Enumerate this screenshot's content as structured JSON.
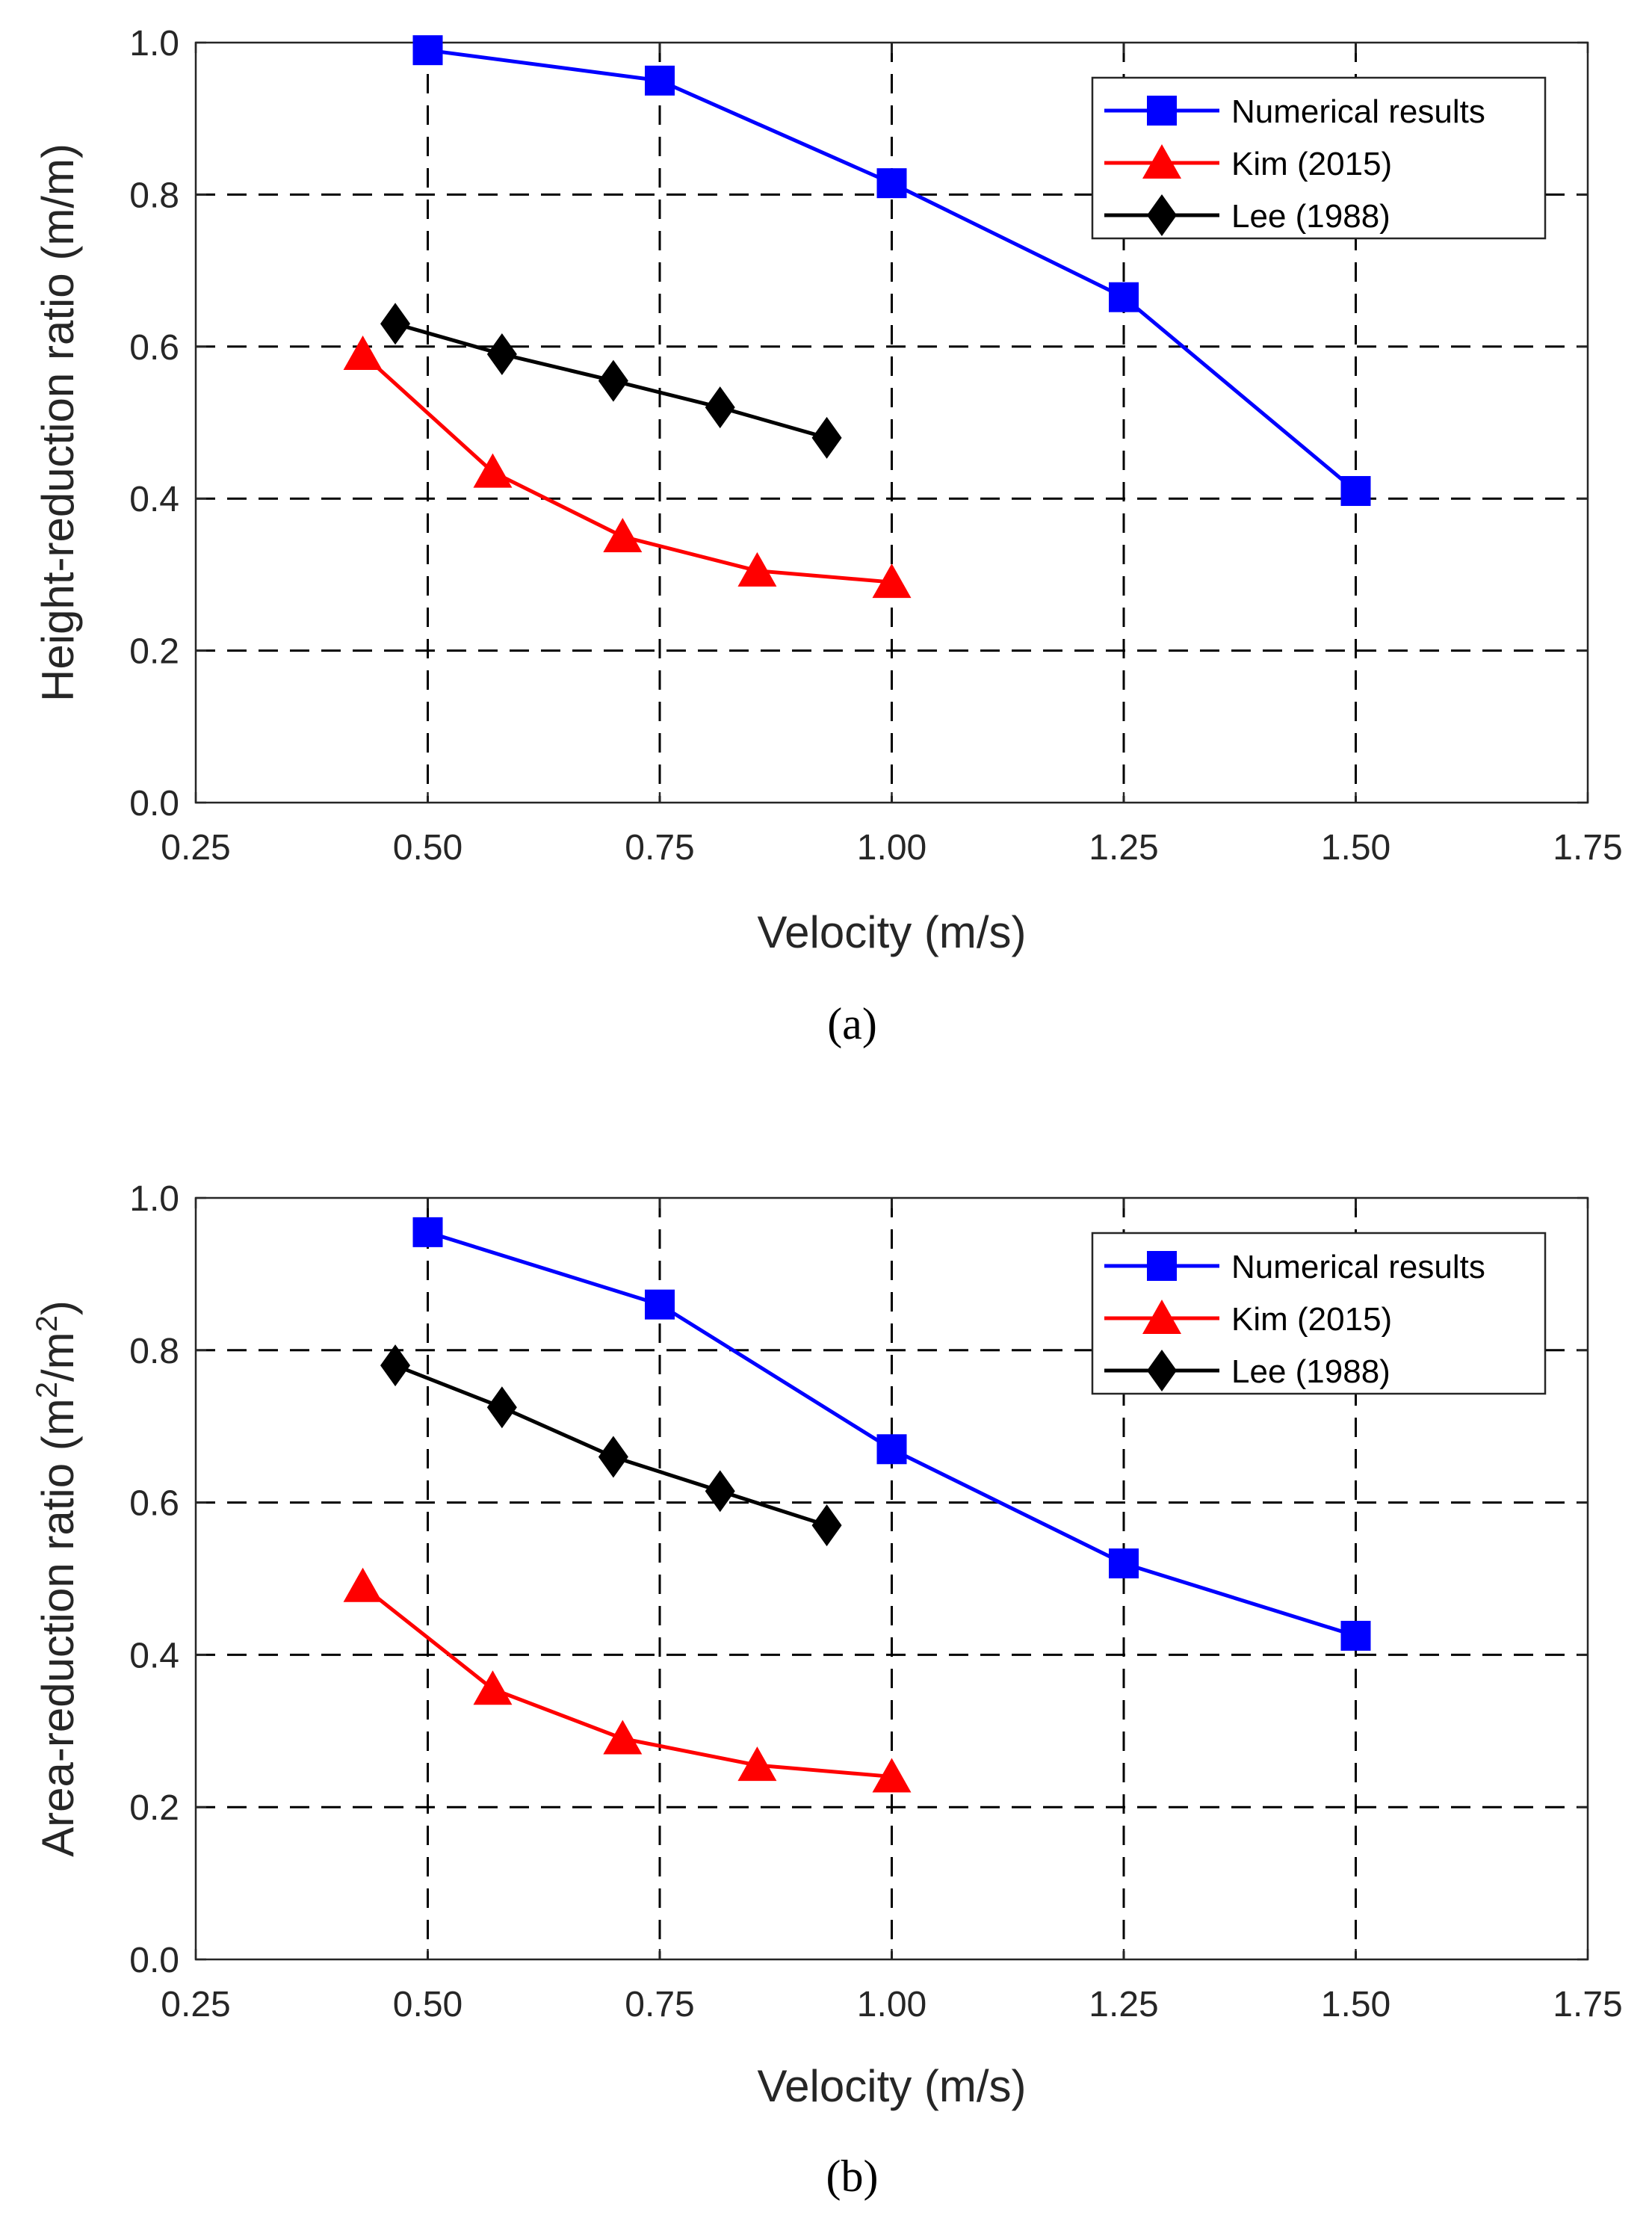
{
  "chart_data": [
    {
      "type": "line",
      "caption": "(a)",
      "xlabel": "Velocity (m/s)",
      "ylabel": "Height-reduction ratio (m/m)",
      "ylabel_parts": {
        "pre": "Height-reduction ratio (m/m)",
        "sup1": "",
        "mid": "",
        "sup2": "",
        "post": ""
      },
      "xlim": [
        0.25,
        1.75
      ],
      "ylim": [
        0.0,
        1.0
      ],
      "xticks": [
        0.25,
        0.5,
        0.75,
        1.0,
        1.25,
        1.5,
        1.75
      ],
      "xtick_labels": [
        "0.25",
        "0.50",
        "0.75",
        "1.00",
        "1.25",
        "1.50",
        "1.75"
      ],
      "yticks": [
        0.0,
        0.2,
        0.4,
        0.6,
        0.8,
        1.0
      ],
      "ytick_labels": [
        "0.0",
        "0.2",
        "0.4",
        "0.6",
        "0.8",
        "1.0"
      ],
      "grid": true,
      "legend_position": "top-right",
      "series": [
        {
          "name": "Numerical results",
          "color": "#0000ff",
          "marker": "square",
          "x": [
            0.5,
            0.75,
            1.0,
            1.25,
            1.5
          ],
          "y": [
            0.99,
            0.95,
            0.815,
            0.665,
            0.41
          ]
        },
        {
          "name": "Kim (2015)",
          "color": "#ff0000",
          "marker": "triangle",
          "x": [
            0.43,
            0.57,
            0.71,
            0.855,
            1.0
          ],
          "y": [
            0.59,
            0.435,
            0.35,
            0.305,
            0.29
          ]
        },
        {
          "name": "Lee (1988)",
          "color": "#000000",
          "marker": "diamond",
          "x": [
            0.465,
            0.58,
            0.7,
            0.815,
            0.93
          ],
          "y": [
            0.63,
            0.59,
            0.555,
            0.52,
            0.48
          ]
        }
      ]
    },
    {
      "type": "line",
      "caption": "(b)",
      "xlabel": "Velocity (m/s)",
      "ylabel": "Area-reduction ratio (m2/m2)",
      "ylabel_parts": {
        "pre": "Area-reduction ratio (m",
        "sup1": "2",
        "mid": "/m",
        "sup2": "2",
        "post": ")"
      },
      "xlim": [
        0.25,
        1.75
      ],
      "ylim": [
        0.0,
        1.0
      ],
      "xticks": [
        0.25,
        0.5,
        0.75,
        1.0,
        1.25,
        1.5,
        1.75
      ],
      "xtick_labels": [
        "0.25",
        "0.50",
        "0.75",
        "1.00",
        "1.25",
        "1.50",
        "1.75"
      ],
      "yticks": [
        0.0,
        0.2,
        0.4,
        0.6,
        0.8,
        1.0
      ],
      "ytick_labels": [
        "0.0",
        "0.2",
        "0.4",
        "0.6",
        "0.8",
        "1.0"
      ],
      "grid": true,
      "legend_position": "top-right",
      "series": [
        {
          "name": "Numerical results",
          "color": "#0000ff",
          "marker": "square",
          "x": [
            0.5,
            0.75,
            1.0,
            1.25,
            1.5
          ],
          "y": [
            0.955,
            0.86,
            0.67,
            0.52,
            0.425
          ]
        },
        {
          "name": "Kim (2015)",
          "color": "#ff0000",
          "marker": "triangle",
          "x": [
            0.43,
            0.57,
            0.71,
            0.855,
            1.0
          ],
          "y": [
            0.49,
            0.355,
            0.29,
            0.255,
            0.24
          ]
        },
        {
          "name": "Lee (1988)",
          "color": "#000000",
          "marker": "diamond",
          "x": [
            0.465,
            0.58,
            0.7,
            0.815,
            0.93
          ],
          "y": [
            0.78,
            0.725,
            0.66,
            0.615,
            0.57
          ]
        }
      ]
    }
  ]
}
